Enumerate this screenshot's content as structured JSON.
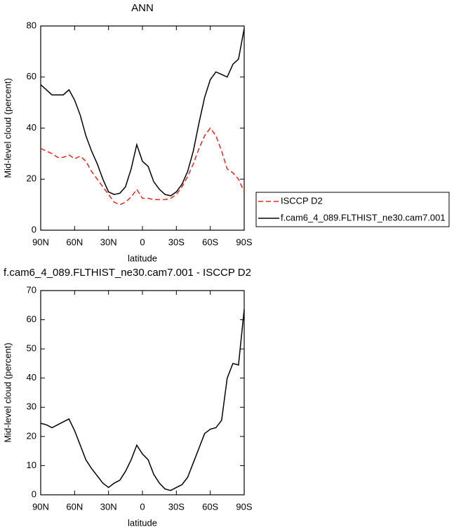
{
  "chart_data": [
    {
      "type": "line",
      "title": "ANN",
      "xlabel": "latitude",
      "ylabel": "Mid-level cloud (percent)",
      "x": [
        90,
        85,
        80,
        75,
        70,
        65,
        60,
        55,
        50,
        45,
        40,
        35,
        30,
        25,
        20,
        15,
        10,
        5,
        0,
        -5,
        -10,
        -15,
        -20,
        -25,
        -30,
        -35,
        -40,
        -45,
        -50,
        -55,
        -60,
        -65,
        -70,
        -75,
        -80,
        -85,
        -90
      ],
      "xlim": [
        90,
        -90
      ],
      "xticks": [
        {
          "value": 90,
          "label": "90N"
        },
        {
          "value": 60,
          "label": "60N"
        },
        {
          "value": 30,
          "label": "30N"
        },
        0,
        {
          "value": -30,
          "label": "30S"
        },
        {
          "value": -60,
          "label": "60S"
        },
        {
          "value": -90,
          "label": "90S"
        }
      ],
      "ylim": [
        0,
        80
      ],
      "yticks": [
        0,
        20,
        40,
        60,
        80
      ],
      "series": [
        {
          "name": "ISCCP D2",
          "color": "#e8261e",
          "linestyle": "dashed",
          "values": [
            32,
            31,
            30,
            28.5,
            28.5,
            29.5,
            28,
            29,
            27,
            23,
            20,
            17,
            14,
            11,
            10,
            11,
            13,
            16,
            12.5,
            12.5,
            12,
            12,
            12,
            12.5,
            14,
            17,
            21,
            26,
            32,
            37,
            40,
            37,
            31,
            24,
            22.5,
            20,
            15
          ]
        },
        {
          "name": "f.cam6_4_089.FLTHIST_ne30.cam7.001",
          "color": "#000000",
          "linestyle": "solid",
          "values": [
            57,
            55,
            53,
            53,
            53,
            55,
            51,
            45,
            37,
            31,
            26,
            20,
            15,
            14,
            14.5,
            17,
            24,
            33.5,
            27,
            25,
            19,
            16,
            14,
            13.5,
            15,
            18,
            23,
            31,
            42,
            52,
            59,
            62,
            61,
            60,
            65,
            67,
            79
          ]
        }
      ]
    },
    {
      "type": "line",
      "title": "f.cam6_4_089.FLTHIST_ne30.cam7.001 - ISCCP D2",
      "xlabel": "latitude",
      "ylabel": "Mid-level cloud (percent)",
      "x": [
        90,
        85,
        80,
        75,
        70,
        65,
        60,
        55,
        50,
        45,
        40,
        35,
        30,
        25,
        20,
        15,
        10,
        5,
        0,
        -5,
        -10,
        -15,
        -20,
        -25,
        -30,
        -35,
        -40,
        -45,
        -50,
        -55,
        -60,
        -65,
        -70,
        -75,
        -80,
        -85,
        -90
      ],
      "xlim": [
        90,
        -90
      ],
      "xticks": [
        {
          "value": 90,
          "label": "90N"
        },
        {
          "value": 60,
          "label": "60N"
        },
        {
          "value": 30,
          "label": "30N"
        },
        0,
        {
          "value": -30,
          "label": "30S"
        },
        {
          "value": -60,
          "label": "60S"
        },
        {
          "value": -90,
          "label": "90S"
        }
      ],
      "ylim": [
        0,
        70
      ],
      "yticks": [
        0,
        10,
        20,
        30,
        40,
        50,
        60,
        70
      ],
      "series": [
        {
          "color": "#000000",
          "linestyle": "solid",
          "values": [
            24.5,
            24,
            23,
            24,
            25,
            26,
            22,
            17,
            12,
            9,
            6.5,
            4,
            2.5,
            4,
            5,
            8,
            12,
            17,
            14,
            12,
            7,
            4,
            2,
            1.5,
            2.5,
            3.5,
            6,
            11,
            16,
            21,
            22.5,
            23,
            25.5,
            40,
            45,
            44.5,
            63.5
          ]
        }
      ]
    }
  ]
}
